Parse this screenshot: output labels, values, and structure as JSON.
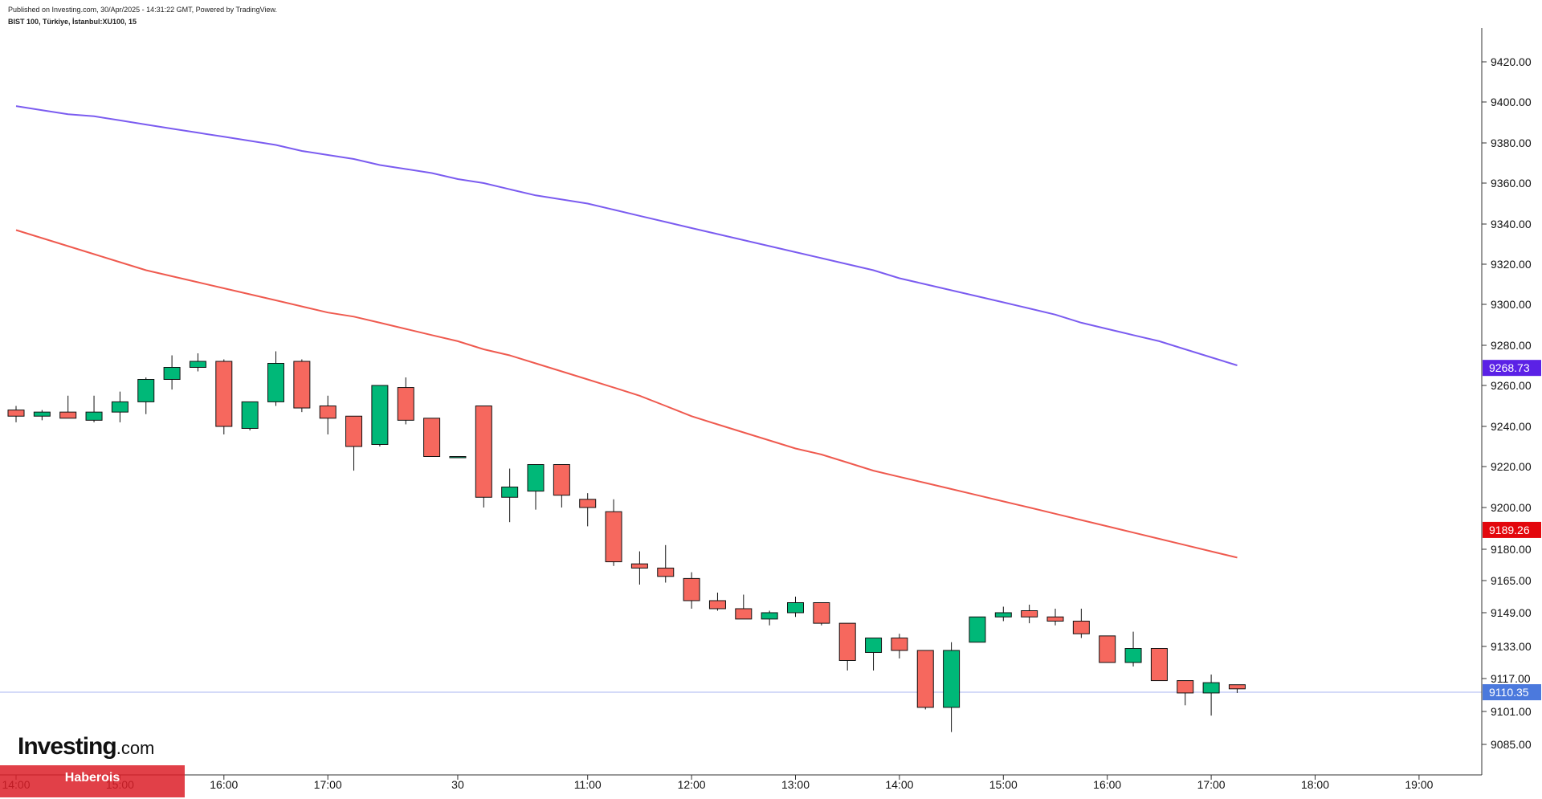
{
  "header": {
    "published": "Published on Investing.com, 30/Apr/2025 - 14:31:22 GMT, Powered by TradingView.",
    "symbol": "BIST 100, Türkiye, İstanbul:XU100, 15"
  },
  "logo": {
    "brand": "Investing",
    "suffix": ".com"
  },
  "watermark": "Haberois",
  "colors": {
    "up": "#00b878",
    "down": "#f6685e",
    "ma_slow": "#7b5cf0",
    "ma_fast": "#ef5a4f",
    "ma_slow_label": "#5b21e6",
    "ma_fast_label": "#e3070d",
    "last_label": "#4b79dd"
  },
  "chart_data": {
    "type": "candlestick",
    "title": "BIST 100, Türkiye, İstanbul:XU100, 15",
    "ylim": [
      9075,
      9433
    ],
    "y_ticks": [
      {
        "value": 9420,
        "label": "9420.00"
      },
      {
        "value": 9400,
        "label": "9400.00"
      },
      {
        "value": 9380,
        "label": "9380.00"
      },
      {
        "value": 9360,
        "label": "9360.00"
      },
      {
        "value": 9340,
        "label": "9340.00"
      },
      {
        "value": 9320,
        "label": "9320.00"
      },
      {
        "value": 9300,
        "label": "9300.00"
      },
      {
        "value": 9280,
        "label": "9280.00"
      },
      {
        "value": 9260,
        "label": "9260.00"
      },
      {
        "value": 9240,
        "label": "9240.00"
      },
      {
        "value": 9220,
        "label": "9220.00"
      },
      {
        "value": 9200,
        "label": "9200.00"
      },
      {
        "value": 9180,
        "label": "9180.00"
      },
      {
        "value": 9165,
        "label": "9165.00"
      },
      {
        "value": 9149,
        "label": "9149.00"
      },
      {
        "value": 9133,
        "label": "9133.00"
      },
      {
        "value": 9117,
        "label": "9117.00"
      },
      {
        "value": 9101,
        "label": "9101.00"
      },
      {
        "value": 9085,
        "label": "9085.00"
      }
    ],
    "x_ticks": [
      {
        "bar": 0,
        "label": "14:00"
      },
      {
        "bar": 4,
        "label": "15:00"
      },
      {
        "bar": 8,
        "label": "16:00"
      },
      {
        "bar": 12,
        "label": "17:00"
      },
      {
        "bar": 17,
        "label": "30"
      },
      {
        "bar": 22,
        "label": "11:00"
      },
      {
        "bar": 26,
        "label": "12:00"
      },
      {
        "bar": 30,
        "label": "13:00"
      },
      {
        "bar": 34,
        "label": "14:00"
      },
      {
        "bar": 38,
        "label": "15:00"
      },
      {
        "bar": 42,
        "label": "16:00"
      },
      {
        "bar": 46,
        "label": "17:00"
      },
      {
        "bar": 50,
        "label": "18:00"
      },
      {
        "bar": 54,
        "label": "19:00"
      }
    ],
    "candles": [
      {
        "o": 9248,
        "h": 9250,
        "l": 9242,
        "c": 9245
      },
      {
        "o": 9245,
        "h": 9248,
        "l": 9243,
        "c": 9247
      },
      {
        "o": 9247,
        "h": 9255,
        "l": 9244,
        "c": 9244
      },
      {
        "o": 9243,
        "h": 9255,
        "l": 9242,
        "c": 9247
      },
      {
        "o": 9247,
        "h": 9257,
        "l": 9242,
        "c": 9252
      },
      {
        "o": 9252,
        "h": 9264,
        "l": 9246,
        "c": 9263
      },
      {
        "o": 9263,
        "h": 9275,
        "l": 9258,
        "c": 9269
      },
      {
        "o": 9269,
        "h": 9276,
        "l": 9267,
        "c": 9272
      },
      {
        "o": 9272,
        "h": 9273,
        "l": 9236,
        "c": 9240
      },
      {
        "o": 9239,
        "h": 9252,
        "l": 9238,
        "c": 9252
      },
      {
        "o": 9252,
        "h": 9277,
        "l": 9250,
        "c": 9271
      },
      {
        "o": 9272,
        "h": 9273,
        "l": 9247,
        "c": 9249
      },
      {
        "o": 9250,
        "h": 9255,
        "l": 9236,
        "c": 9244
      },
      {
        "o": 9245,
        "h": 9245,
        "l": 9218,
        "c": 9230
      },
      {
        "o": 9231,
        "h": 9260,
        "l": 9230,
        "c": 9260
      },
      {
        "o": 9259,
        "h": 9264,
        "l": 9241,
        "c": 9243
      },
      {
        "o": 9244,
        "h": 9244,
        "l": 9225,
        "c": 9225
      },
      {
        "o": 9225,
        "h": 9225,
        "l": 9225,
        "c": 9225
      },
      {
        "o": 9250,
        "h": 9250,
        "l": 9200,
        "c": 9205
      },
      {
        "o": 9205,
        "h": 9219,
        "l": 9193,
        "c": 9210
      },
      {
        "o": 9208,
        "h": 9221,
        "l": 9199,
        "c": 9221
      },
      {
        "o": 9221,
        "h": 9221,
        "l": 9200,
        "c": 9206
      },
      {
        "o": 9204,
        "h": 9207,
        "l": 9191,
        "c": 9200
      },
      {
        "o": 9198,
        "h": 9204,
        "l": 9172,
        "c": 9174
      },
      {
        "o": 9173,
        "h": 9179,
        "l": 9163,
        "c": 9171
      },
      {
        "o": 9171,
        "h": 9182,
        "l": 9164,
        "c": 9167
      },
      {
        "o": 9166,
        "h": 9169,
        "l": 9151,
        "c": 9155
      },
      {
        "o": 9155,
        "h": 9159,
        "l": 9150,
        "c": 9151
      },
      {
        "o": 9151,
        "h": 9158,
        "l": 9146,
        "c": 9146
      },
      {
        "o": 9146,
        "h": 9150,
        "l": 9143,
        "c": 9149
      },
      {
        "o": 9149,
        "h": 9157,
        "l": 9147,
        "c": 9154
      },
      {
        "o": 9154,
        "h": 9154,
        "l": 9143,
        "c": 9144
      },
      {
        "o": 9144,
        "h": 9144,
        "l": 9121,
        "c": 9126
      },
      {
        "o": 9130,
        "h": 9137,
        "l": 9121,
        "c": 9137
      },
      {
        "o": 9137,
        "h": 9139,
        "l": 9127,
        "c": 9131
      },
      {
        "o": 9131,
        "h": 9131,
        "l": 9102,
        "c": 9103
      },
      {
        "o": 9103,
        "h": 9135,
        "l": 9091,
        "c": 9131
      },
      {
        "o": 9135,
        "h": 9147,
        "l": 9135,
        "c": 9147
      },
      {
        "o": 9147,
        "h": 9152,
        "l": 9145,
        "c": 9149
      },
      {
        "o": 9150,
        "h": 9153,
        "l": 9144,
        "c": 9147
      },
      {
        "o": 9147,
        "h": 9151,
        "l": 9143,
        "c": 9145
      },
      {
        "o": 9145,
        "h": 9151,
        "l": 9137,
        "c": 9139
      },
      {
        "o": 9138,
        "h": 9138,
        "l": 9125,
        "c": 9125
      },
      {
        "o": 9125,
        "h": 9140,
        "l": 9123,
        "c": 9132
      },
      {
        "o": 9132,
        "h": 9132,
        "l": 9116,
        "c": 9116
      },
      {
        "o": 9116,
        "h": 9116,
        "l": 9104,
        "c": 9110
      },
      {
        "o": 9110,
        "h": 9119,
        "l": 9099,
        "c": 9115
      },
      {
        "o": 9114,
        "h": 9114,
        "l": 9110,
        "c": 9112
      }
    ],
    "series": [
      {
        "name": "MA slow",
        "values": [
          9398,
          9396,
          9394,
          9393,
          9391,
          9389,
          9387,
          9385,
          9383,
          9381,
          9379,
          9376,
          9374,
          9372,
          9369,
          9367,
          9365,
          9362,
          9360,
          9357,
          9354,
          9352,
          9350,
          9347,
          9344,
          9341,
          9338,
          9335,
          9332,
          9329,
          9326,
          9323,
          9320,
          9317,
          9313,
          9310,
          9307,
          9304,
          9301,
          9298,
          9295,
          9291,
          9288,
          9285,
          9282,
          9278,
          9274,
          9270
        ]
      },
      {
        "name": "MA fast",
        "values": [
          9337,
          9333,
          9329,
          9325,
          9321,
          9317,
          9314,
          9311,
          9308,
          9305,
          9302,
          9299,
          9296,
          9294,
          9291,
          9288,
          9285,
          9282,
          9278,
          9275,
          9271,
          9267,
          9263,
          9259,
          9255,
          9250,
          9245,
          9241,
          9237,
          9233,
          9229,
          9226,
          9222,
          9218,
          9215,
          9212,
          9209,
          9206,
          9203,
          9200,
          9197,
          9194,
          9191,
          9188,
          9185,
          9182,
          9179,
          9176
        ]
      }
    ],
    "price_labels": [
      {
        "value": 9268.73,
        "label": "9268.73",
        "color_key": "ma_slow_label"
      },
      {
        "value": 9189.26,
        "label": "9189.26",
        "color_key": "ma_fast_label"
      },
      {
        "value": 9110.35,
        "label": "9110.35",
        "color_key": "last_label"
      }
    ],
    "last_price": 9110.35
  }
}
